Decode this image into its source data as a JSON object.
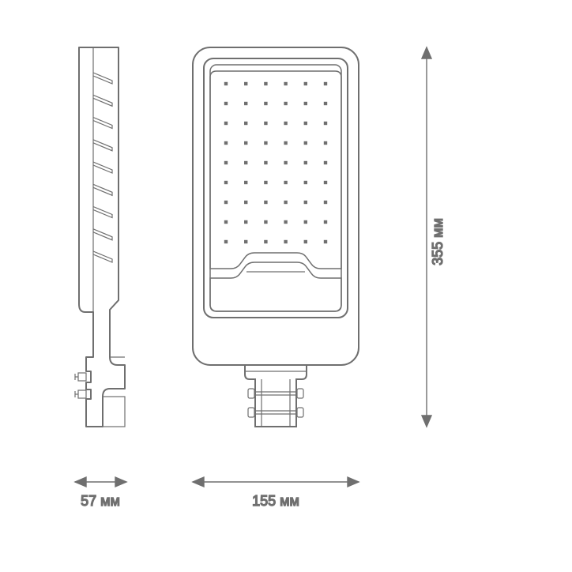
{
  "diagram": {
    "type": "technical-drawing",
    "background_color": "#ffffff",
    "stroke_color": "#6f6f6f",
    "stroke_width": 2,
    "thin_stroke_width": 1.2,
    "label_color": "#7a7a7a",
    "label_fontsize": 18,
    "dimensions": {
      "height": {
        "value": "355",
        "unit": "мм",
        "label": "355 мм"
      },
      "front_width": {
        "value": "155",
        "unit": "мм",
        "label": "155 мм"
      },
      "side_width": {
        "value": "57",
        "unit": "мм",
        "label": "57 мм"
      }
    },
    "front_view": {
      "led_grid": {
        "rows": 9,
        "cols": 6
      }
    },
    "side_view": {
      "fin_count": 9
    }
  }
}
